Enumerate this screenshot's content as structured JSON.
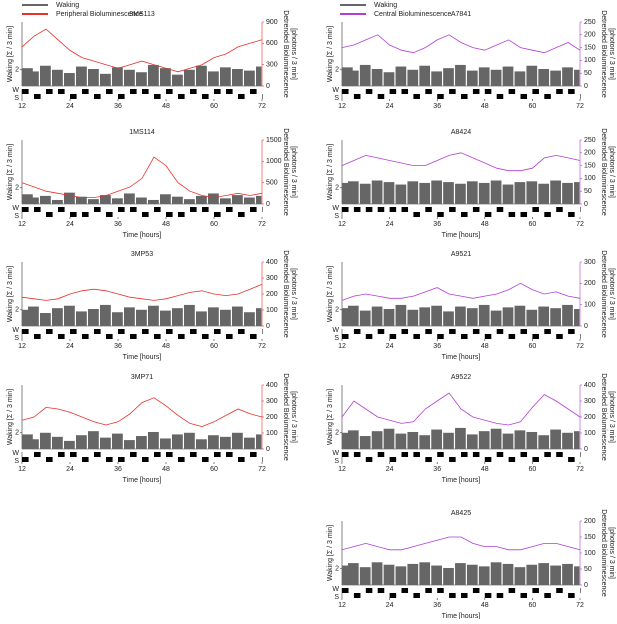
{
  "legends": [
    {
      "entries": [
        {
          "name": "Waking",
          "color": "#666666"
        },
        {
          "name": "Peripheral Bioluminescence",
          "color": "#e8312b"
        }
      ]
    },
    {
      "entries": [
        {
          "name": "Waking",
          "color": "#666666"
        },
        {
          "name": "Central Bioluminescence",
          "color": "#b03fd6"
        }
      ]
    }
  ],
  "chart_data": [
    {
      "type": "line",
      "title": "3MS113",
      "y_label": "Waking [Σ / 3 min]",
      "y2_label": [
        "Detrended Bioluminescence",
        "[photons / 3 min]"
      ],
      "state_labels": [
        "W",
        "S"
      ],
      "x": [
        12,
        15,
        18,
        21,
        24,
        27,
        30,
        33,
        36,
        39,
        42,
        45,
        48,
        51,
        54,
        57,
        60,
        63,
        66,
        69,
        72
      ],
      "xlim": [
        12,
        72
      ],
      "xticks": [
        12,
        24,
        36,
        48,
        60,
        72
      ],
      "ylim": [
        0,
        3
      ],
      "yticks": [
        2
      ],
      "y2lim": [
        0,
        900
      ],
      "y2ticks": [
        0,
        300,
        600,
        900
      ],
      "waking": {
        "color": "#666666",
        "values": [
          2.2,
          1.8,
          2.5,
          2.0,
          1.6,
          2.4,
          2.1,
          1.5,
          2.3,
          2.0,
          1.7,
          2.6,
          2.2,
          1.4,
          2.0,
          2.5,
          1.8,
          2.3,
          2.1,
          1.9,
          2.4
        ]
      },
      "bioluminescence": {
        "color": "#e8312b",
        "values": [
          550,
          700,
          800,
          650,
          500,
          400,
          350,
          300,
          250,
          300,
          350,
          300,
          250,
          200,
          250,
          300,
          400,
          450,
          550,
          600,
          650
        ]
      },
      "states": [
        1,
        0,
        1,
        1,
        0,
        1,
        0,
        1,
        0,
        1,
        1,
        0,
        1,
        0,
        1,
        0,
        1,
        1,
        0,
        1,
        0
      ]
    },
    {
      "type": "line",
      "title": "1MS114",
      "y_label": "Waking [Σ / 3 min]",
      "y2_label": [
        "Detrended Bioluminescence",
        "[photons / 3 min]"
      ],
      "state_labels": [
        "W",
        "S"
      ],
      "x_label": "Time [hours]",
      "x": [
        12,
        15,
        18,
        21,
        24,
        27,
        30,
        33,
        36,
        39,
        42,
        45,
        48,
        51,
        54,
        57,
        60,
        63,
        66,
        69,
        72
      ],
      "xlim": [
        12,
        72
      ],
      "xticks": [
        12,
        24,
        36,
        48,
        60,
        72
      ],
      "ylim": [
        0,
        3
      ],
      "yticks": [
        2
      ],
      "y2lim": [
        0,
        1500
      ],
      "y2ticks": [
        0,
        500,
        1000,
        1500
      ],
      "waking": {
        "color": "#666666",
        "values": [
          1.2,
          0.8,
          1.0,
          0.5,
          1.4,
          0.9,
          0.6,
          1.1,
          0.7,
          1.3,
          0.8,
          0.5,
          1.2,
          0.9,
          0.6,
          1.0,
          1.3,
          0.7,
          1.1,
          0.8,
          1.0
        ]
      },
      "bioluminescence": {
        "color": "#e8312b",
        "values": [
          500,
          400,
          300,
          250,
          200,
          150,
          150,
          200,
          300,
          400,
          600,
          1100,
          900,
          500,
          300,
          200,
          150,
          200,
          250,
          200,
          250
        ]
      },
      "states": [
        1,
        1,
        0,
        1,
        0,
        0,
        1,
        0,
        1,
        1,
        0,
        1,
        0,
        0,
        1,
        1,
        0,
        1,
        0,
        1,
        1
      ]
    },
    {
      "type": "line",
      "title": "3MP53",
      "y_label": "Waking [Σ / 3 min]",
      "y2_label": [
        "Detrended Bioluminescence",
        "[photons / 3 min]"
      ],
      "state_labels": [
        "W",
        "S"
      ],
      "x_label": "Time [hours]",
      "x": [
        12,
        15,
        18,
        21,
        24,
        27,
        30,
        33,
        36,
        39,
        42,
        45,
        48,
        51,
        54,
        57,
        60,
        63,
        66,
        69,
        72
      ],
      "xlim": [
        12,
        72
      ],
      "xticks": [
        12,
        24,
        36,
        48,
        60,
        72
      ],
      "ylim": [
        0,
        3
      ],
      "yticks": [
        2
      ],
      "y2lim": [
        0,
        400
      ],
      "y2ticks": [
        0,
        100,
        200,
        300,
        400
      ],
      "waking": {
        "color": "#666666",
        "values": [
          2.0,
          2.4,
          1.6,
          2.2,
          2.5,
          1.8,
          2.1,
          2.6,
          1.7,
          2.3,
          2.0,
          2.5,
          1.9,
          2.2,
          2.6,
          1.8,
          2.3,
          2.0,
          2.4,
          1.7,
          2.2
        ]
      },
      "bioluminescence": {
        "color": "#e8312b",
        "values": [
          180,
          170,
          160,
          170,
          200,
          220,
          230,
          220,
          200,
          180,
          170,
          160,
          170,
          190,
          210,
          220,
          200,
          190,
          200,
          230,
          260
        ]
      },
      "states": [
        1,
        0,
        1,
        0,
        1,
        0,
        1,
        0,
        1,
        0,
        1,
        0,
        1,
        0,
        1,
        0,
        1,
        0,
        1,
        0,
        1
      ]
    },
    {
      "type": "line",
      "title": "3MP71",
      "y_label": "Waking [Σ / 3 min]",
      "y2_label": [
        "Detrended Bioluminescence",
        "[photons / 3 min]"
      ],
      "state_labels": [
        "W",
        "S"
      ],
      "x_label": "Time [hours]",
      "x": [
        12,
        15,
        18,
        21,
        24,
        27,
        30,
        33,
        36,
        39,
        42,
        45,
        48,
        51,
        54,
        57,
        60,
        63,
        66,
        69,
        72
      ],
      "xlim": [
        12,
        72
      ],
      "xticks": [
        12,
        24,
        36,
        48,
        60,
        72
      ],
      "ylim": [
        0,
        3
      ],
      "yticks": [
        2
      ],
      "y2lim": [
        0,
        400
      ],
      "y2ticks": [
        0,
        100,
        200,
        300,
        400
      ],
      "waking": {
        "color": "#666666",
        "values": [
          1.8,
          1.2,
          2.0,
          1.5,
          1.0,
          1.7,
          2.2,
          1.4,
          1.9,
          1.1,
          1.6,
          2.1,
          1.3,
          1.8,
          2.0,
          1.2,
          1.7,
          1.5,
          2.0,
          1.4,
          1.8
        ]
      },
      "bioluminescence": {
        "color": "#e8312b",
        "values": [
          180,
          200,
          260,
          250,
          230,
          200,
          170,
          150,
          170,
          220,
          290,
          320,
          270,
          210,
          160,
          140,
          170,
          210,
          250,
          220,
          200
        ]
      },
      "states": [
        0,
        1,
        0,
        1,
        1,
        0,
        1,
        0,
        0,
        1,
        0,
        1,
        1,
        0,
        1,
        0,
        1,
        1,
        0,
        1,
        0
      ]
    },
    {
      "type": "line",
      "title": "A7841",
      "y_label": "Waking [Σ / 3 min]",
      "y2_label": [
        "Detrended Bioluminescence",
        "[photons / 3 min]"
      ],
      "state_labels": [
        "W",
        "S"
      ],
      "x": [
        12,
        15,
        18,
        21,
        24,
        27,
        30,
        33,
        36,
        39,
        42,
        45,
        48,
        51,
        54,
        57,
        60,
        63,
        66,
        69,
        72
      ],
      "xlim": [
        12,
        72
      ],
      "xticks": [
        12,
        24,
        36,
        48,
        60,
        72
      ],
      "ylim": [
        0,
        3
      ],
      "yticks": [
        2
      ],
      "y2lim": [
        0,
        250
      ],
      "y2ticks": [
        0,
        50,
        100,
        150,
        200,
        250
      ],
      "waking": {
        "color": "#666666",
        "values": [
          2.3,
          1.9,
          2.6,
          2.1,
          1.7,
          2.4,
          2.0,
          2.5,
          1.8,
          2.2,
          2.6,
          1.9,
          2.3,
          2.0,
          2.4,
          1.8,
          2.5,
          2.1,
          1.9,
          2.3,
          2.0
        ]
      },
      "bioluminescence": {
        "color": "#b03fd6",
        "values": [
          150,
          160,
          180,
          200,
          160,
          140,
          130,
          150,
          180,
          200,
          170,
          150,
          140,
          160,
          180,
          150,
          140,
          130,
          150,
          170,
          140
        ]
      },
      "states": [
        1,
        0,
        1,
        0,
        1,
        1,
        0,
        1,
        0,
        1,
        0,
        1,
        1,
        0,
        1,
        0,
        1,
        0,
        1,
        1,
        0
      ]
    },
    {
      "type": "line",
      "title": "A8424",
      "y_label": "Waking [Σ / 3 min]",
      "y2_label": [
        "Detrended Bioluminescence",
        "[photons / 3 min]"
      ],
      "state_labels": [
        "W",
        "S"
      ],
      "x_label": "Time [hours]",
      "x": [
        12,
        15,
        18,
        21,
        24,
        27,
        30,
        33,
        36,
        39,
        42,
        45,
        48,
        51,
        54,
        57,
        60,
        63,
        66,
        69,
        72
      ],
      "xlim": [
        12,
        72
      ],
      "xticks": [
        12,
        24,
        36,
        48,
        60,
        72
      ],
      "ylim": [
        0,
        3
      ],
      "yticks": [
        2
      ],
      "y2lim": [
        0,
        250
      ],
      "y2ticks": [
        0,
        50,
        100,
        150,
        200,
        250
      ],
      "waking": {
        "color": "#666666",
        "values": [
          2.6,
          2.8,
          2.5,
          2.9,
          2.7,
          2.4,
          2.8,
          2.6,
          2.9,
          2.7,
          2.5,
          2.8,
          2.6,
          2.9,
          2.4,
          2.7,
          2.8,
          2.5,
          2.9,
          2.6,
          2.7
        ]
      },
      "bioluminescence": {
        "color": "#b03fd6",
        "values": [
          150,
          170,
          190,
          180,
          170,
          160,
          150,
          150,
          170,
          190,
          200,
          180,
          160,
          140,
          130,
          130,
          140,
          180,
          190,
          180,
          170
        ]
      },
      "states": [
        1,
        1,
        1,
        1,
        1,
        1,
        0,
        1,
        0,
        1,
        0,
        1,
        0,
        1,
        0,
        0,
        1,
        0,
        1,
        0,
        1
      ]
    },
    {
      "type": "line",
      "title": "A9521",
      "y_label": "Waking [Σ / 3 min]",
      "y2_label": [
        "Detrended Bioluminescence",
        "[photons / 3 min]"
      ],
      "state_labels": [
        "W",
        "S"
      ],
      "x_label": "Time [hours]",
      "x": [
        12,
        15,
        18,
        21,
        24,
        27,
        30,
        33,
        36,
        39,
        42,
        45,
        48,
        51,
        54,
        57,
        60,
        63,
        66,
        69,
        72
      ],
      "xlim": [
        12,
        72
      ],
      "xticks": [
        12,
        24,
        36,
        48,
        60,
        72
      ],
      "ylim": [
        0,
        3
      ],
      "yticks": [
        2
      ],
      "y2lim": [
        0,
        300
      ],
      "y2ticks": [
        0,
        100,
        200,
        300
      ],
      "waking": {
        "color": "#666666",
        "values": [
          2.2,
          2.5,
          1.9,
          2.4,
          2.1,
          2.6,
          2.0,
          2.3,
          2.5,
          1.8,
          2.4,
          2.2,
          2.6,
          1.9,
          2.3,
          2.5,
          2.0,
          2.4,
          2.2,
          2.6,
          2.1
        ]
      },
      "bioluminescence": {
        "color": "#b03fd6",
        "values": [
          120,
          140,
          150,
          140,
          130,
          130,
          140,
          160,
          180,
          150,
          140,
          130,
          140,
          150,
          170,
          200,
          170,
          150,
          160,
          140,
          130
        ]
      },
      "states": [
        0,
        1,
        0,
        1,
        0,
        1,
        0,
        1,
        0,
        1,
        0,
        1,
        0,
        1,
        0,
        1,
        0,
        1,
        0,
        1,
        0
      ]
    },
    {
      "type": "line",
      "title": "A9522",
      "y_label": "Waking [Σ / 3 min]",
      "y2_label": [
        "Detrended Bioluminescence",
        "[photons / 3 min]"
      ],
      "state_labels": [
        "W",
        "S"
      ],
      "x_label": "Time [hours]",
      "x": [
        12,
        15,
        18,
        21,
        24,
        27,
        30,
        33,
        36,
        39,
        42,
        45,
        48,
        51,
        54,
        57,
        60,
        63,
        66,
        69,
        72
      ],
      "xlim": [
        12,
        72
      ],
      "xticks": [
        12,
        24,
        36,
        48,
        60,
        72
      ],
      "ylim": [
        0,
        3
      ],
      "yticks": [
        2
      ],
      "y2lim": [
        0,
        400
      ],
      "y2ticks": [
        0,
        100,
        200,
        300,
        400
      ],
      "waking": {
        "color": "#666666",
        "values": [
          2.0,
          2.3,
          1.6,
          2.2,
          2.5,
          1.9,
          2.1,
          1.7,
          2.4,
          2.0,
          2.6,
          1.8,
          2.2,
          2.5,
          1.9,
          2.3,
          2.1,
          1.7,
          2.4,
          2.0,
          2.2
        ]
      },
      "bioluminescence": {
        "color": "#b03fd6",
        "values": [
          200,
          300,
          250,
          200,
          180,
          160,
          170,
          250,
          300,
          350,
          250,
          200,
          180,
          160,
          150,
          170,
          260,
          340,
          300,
          250,
          200
        ]
      },
      "states": [
        1,
        1,
        0,
        1,
        0,
        1,
        1,
        0,
        1,
        0,
        1,
        1,
        0,
        1,
        0,
        1,
        0,
        1,
        1,
        0,
        1
      ]
    },
    {
      "type": "line",
      "title": "A8425",
      "y_label": "Waking [Σ / 3 min]",
      "y2_label": [
        "Detrended Bioluminescence",
        "[photons / 3 min]"
      ],
      "state_labels": [
        "W",
        "S"
      ],
      "x_label": "Time [hours]",
      "x": [
        12,
        15,
        18,
        21,
        24,
        27,
        30,
        33,
        36,
        39,
        42,
        45,
        48,
        51,
        54,
        57,
        60,
        63,
        66,
        69,
        72
      ],
      "xlim": [
        12,
        72
      ],
      "xticks": [
        12,
        24,
        36,
        48,
        60,
        72
      ],
      "ylim": [
        0,
        3
      ],
      "yticks": [
        2
      ],
      "y2lim": [
        0,
        200
      ],
      "y2ticks": [
        0,
        50,
        100,
        150,
        200
      ],
      "waking": {
        "color": "#666666",
        "values": [
          2.4,
          2.7,
          2.2,
          2.8,
          2.5,
          2.3,
          2.6,
          2.8,
          2.4,
          2.1,
          2.7,
          2.5,
          2.3,
          2.8,
          2.6,
          2.2,
          2.5,
          2.7,
          2.4,
          2.6,
          2.3
        ]
      },
      "bioluminescence": {
        "color": "#b03fd6",
        "values": [
          110,
          120,
          130,
          120,
          110,
          110,
          120,
          130,
          140,
          150,
          150,
          130,
          120,
          120,
          110,
          110,
          120,
          130,
          130,
          120,
          110
        ]
      },
      "states": [
        1,
        0,
        1,
        1,
        0,
        1,
        0,
        1,
        1,
        0,
        0,
        1,
        0,
        0,
        1,
        0,
        1,
        0,
        1,
        0,
        1
      ]
    }
  ]
}
